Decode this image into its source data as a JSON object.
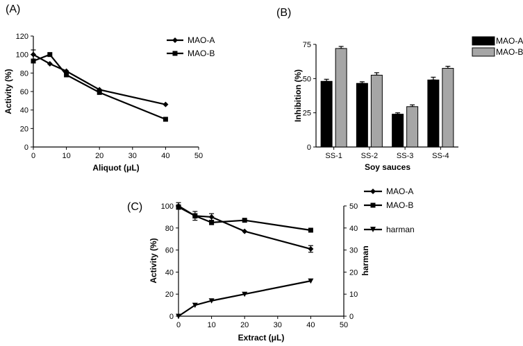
{
  "chart_data": [
    {
      "panel_label": "(A)",
      "type": "line",
      "xlabel": "Aliquot (μL)",
      "ylabel": "Activity (%)",
      "xlim": [
        0,
        50
      ],
      "ylim": [
        0,
        120
      ],
      "xticks": [
        0,
        10,
        20,
        30,
        40,
        50
      ],
      "yticks": [
        0,
        20,
        40,
        60,
        80,
        100,
        120
      ],
      "series": [
        {
          "name": "MAO-A",
          "marker": "diamond",
          "x": [
            0,
            5,
            10,
            20,
            40
          ],
          "y": [
            100,
            90,
            82,
            62,
            46
          ],
          "err": [
            5,
            0,
            0,
            0,
            0
          ]
        },
        {
          "name": "MAO-B",
          "marker": "square",
          "x": [
            0,
            5,
            10,
            20,
            40
          ],
          "y": [
            93,
            100,
            78,
            59,
            30
          ],
          "err": [
            0,
            0,
            0,
            0,
            0
          ]
        }
      ]
    },
    {
      "panel_label": "(B)",
      "type": "bar",
      "xlabel": "Soy sauces",
      "ylabel": "Inhibition (%)",
      "ylim": [
        0,
        75
      ],
      "yticks": [
        0,
        25,
        50,
        75
      ],
      "categories": [
        "SS-1",
        "SS-2",
        "SS-3",
        "SS-4"
      ],
      "series": [
        {
          "name": "MAO-A",
          "color": "#000000",
          "values": [
            48,
            46.5,
            24,
            49
          ],
          "err": [
            1.5,
            1.2,
            1,
            2
          ]
        },
        {
          "name": "MAO-B",
          "color": "#a6a6a6",
          "values": [
            72,
            52.5,
            29.5,
            57.5
          ],
          "err": [
            1.5,
            1.8,
            1.3,
            1.5
          ]
        }
      ]
    },
    {
      "panel_label": "(C)",
      "type": "line",
      "xlabel": "Extract (μL)",
      "ylabel": "Activity (%)",
      "y2label": "harman",
      "xlim": [
        0,
        50
      ],
      "ylim": [
        0,
        100
      ],
      "y2lim": [
        0,
        50
      ],
      "xticks": [
        0,
        10,
        20,
        30,
        40,
        50
      ],
      "yticks": [
        0,
        20,
        40,
        60,
        80,
        100
      ],
      "y2ticks": [
        0,
        10,
        20,
        30,
        40,
        50
      ],
      "series": [
        {
          "name": "MAO-A",
          "marker": "diamond",
          "axis": "left",
          "x": [
            0,
            5,
            10,
            20,
            40
          ],
          "y": [
            100,
            91,
            90,
            77,
            61
          ],
          "err": [
            3,
            4,
            3,
            0,
            3
          ]
        },
        {
          "name": "MAO-B",
          "marker": "square",
          "axis": "left",
          "x": [
            0,
            5,
            10,
            20,
            40
          ],
          "y": [
            99,
            91,
            85,
            87,
            78
          ],
          "err": [
            2,
            2,
            2,
            0,
            0
          ]
        },
        {
          "name": "harman",
          "marker": "triangle-down",
          "axis": "right",
          "x": [
            0,
            5,
            10,
            20,
            40
          ],
          "y": [
            0,
            5,
            7,
            10,
            16
          ],
          "err": [
            0,
            0,
            0,
            0,
            0
          ]
        }
      ]
    }
  ]
}
